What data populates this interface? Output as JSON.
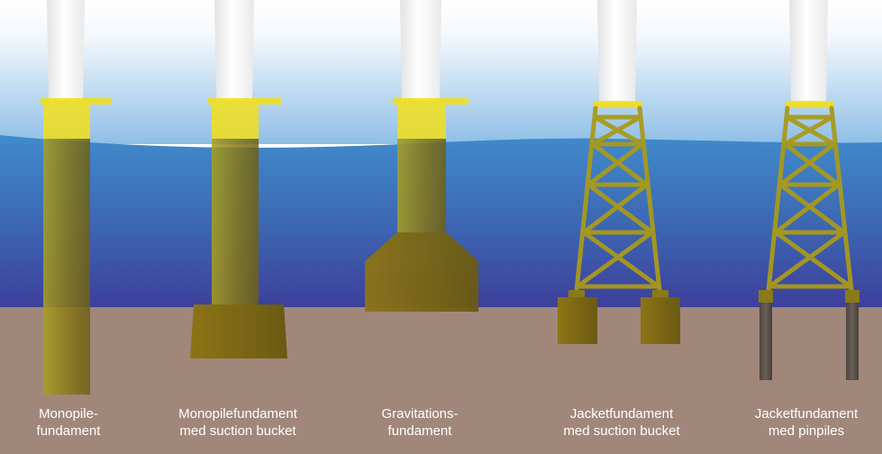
{
  "colors": {
    "sky_top": "#ffffff",
    "sky_bottom": "#8fbfe6",
    "water_top": "#3a86c8",
    "water_bottom": "#3d3f9a",
    "seabed": "#a0877a",
    "tower": "#ffffff",
    "transition_piece": "#f2df1a",
    "foundation": "#8a7a18",
    "pin_pile": "#5a4e48"
  },
  "foundations": [
    {
      "id": "monopile",
      "caption": [
        "Monopile-",
        "fundament"
      ]
    },
    {
      "id": "monopile-suction-bucket",
      "caption": [
        "Monopilefundament",
        "med suction bucket"
      ]
    },
    {
      "id": "gravity",
      "caption": [
        "Gravitations-",
        "fundament"
      ]
    },
    {
      "id": "jacket-suction-bucket",
      "caption": [
        "Jacketfundament",
        "med suction bucket"
      ]
    },
    {
      "id": "jacket-pinpiles",
      "caption": [
        "Jacketfundament",
        "med pinpiles"
      ]
    }
  ]
}
